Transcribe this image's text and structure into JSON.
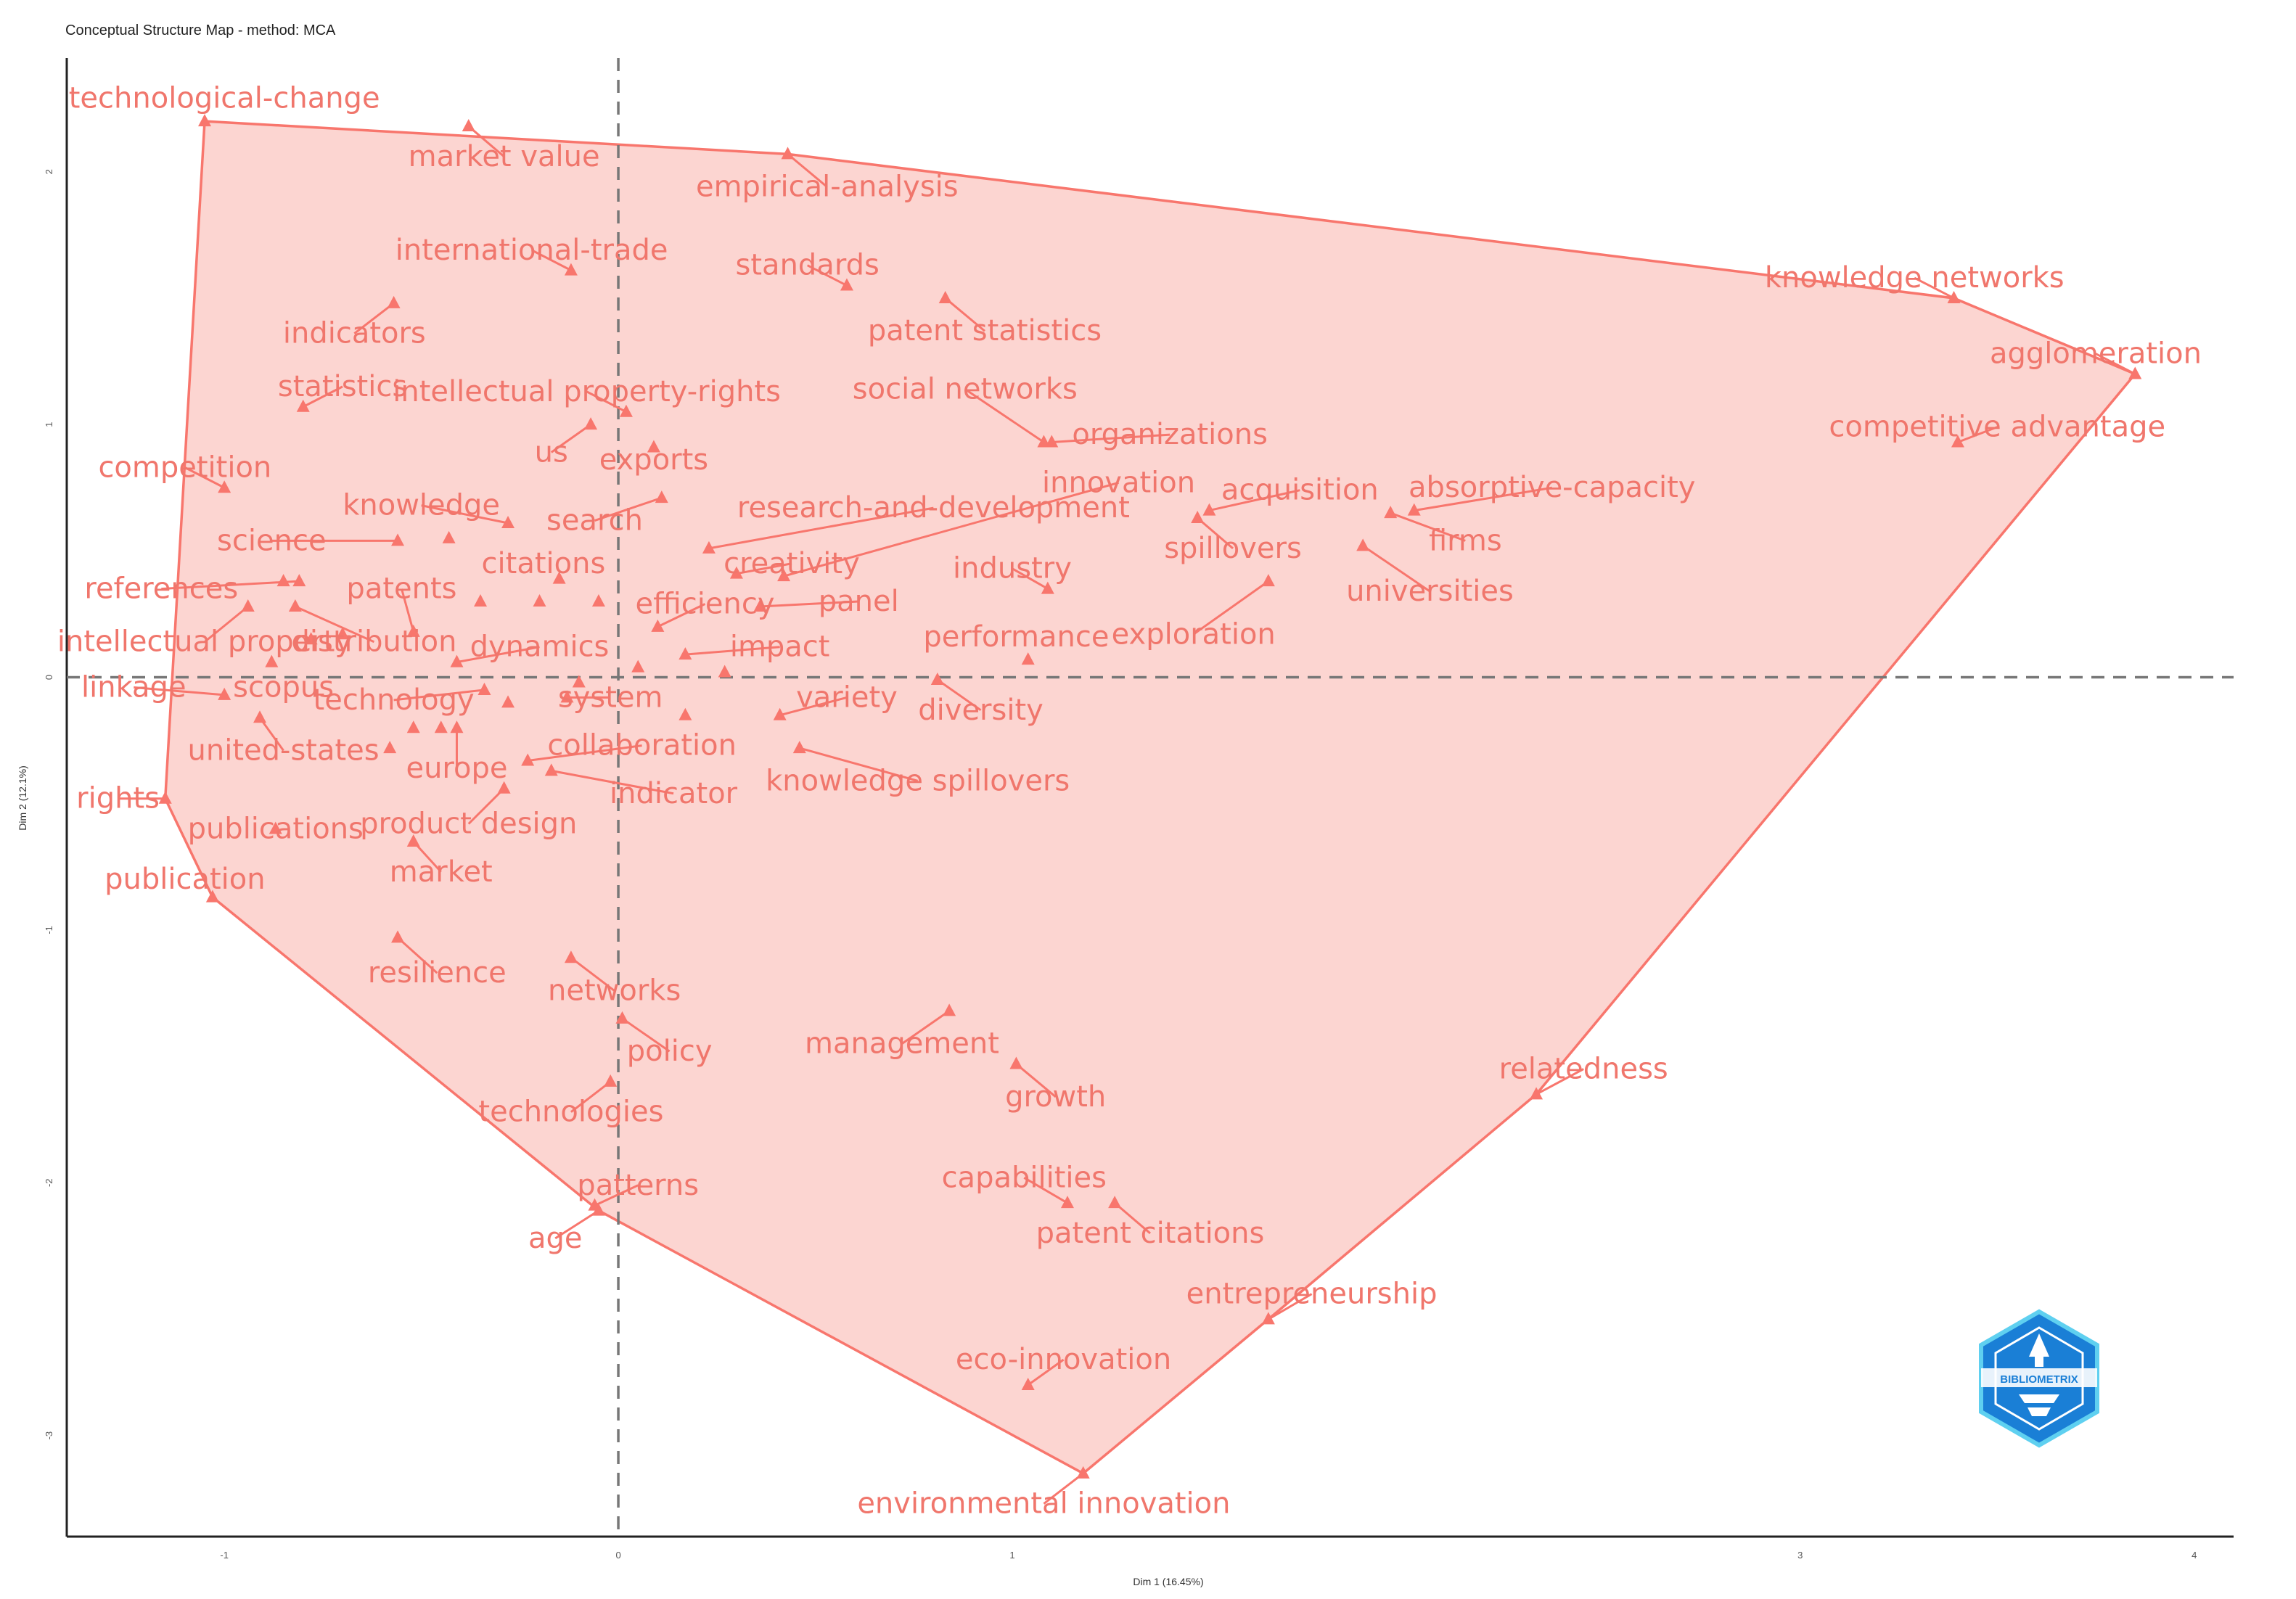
{
  "chart_data": {
    "type": "scatter",
    "title": "Conceptual Structure Map - method: MCA",
    "xlabel": "Dim 1 (16.45%)",
    "ylabel": "Dim 2 (12.1%)",
    "xlim": [
      -1.4,
      4.1
    ],
    "ylim": [
      -3.4,
      2.45
    ],
    "xticks": [
      -1,
      0,
      1,
      3,
      4
    ],
    "yticks": [
      2,
      1,
      0,
      -1,
      -2,
      -3
    ],
    "reference_lines": {
      "x": 0,
      "y": 0
    },
    "colors": {
      "cluster": "#f8766d",
      "fill": "#fcd3cf",
      "logo": "#1a7fd6"
    },
    "hull": [
      "technological-change",
      "empirical-analysis",
      "knowledge networks",
      "agglomeration",
      "relatedness",
      "entrepreneurship",
      "environmental innovation",
      "age",
      "publication",
      "rights"
    ],
    "points": [
      {
        "label": "technological-change",
        "x": -1.05,
        "y": 2.2,
        "lx": -1.0,
        "ly": 2.29
      },
      {
        "label": "market value",
        "x": -0.38,
        "y": 2.18,
        "lx": -0.29,
        "ly": 2.06
      },
      {
        "label": "empirical-analysis",
        "x": 0.43,
        "y": 2.07,
        "lx": 0.53,
        "ly": 1.94
      },
      {
        "label": "international-trade",
        "x": -0.12,
        "y": 1.61,
        "lx": -0.22,
        "ly": 1.69
      },
      {
        "label": "standards",
        "x": 0.58,
        "y": 1.55,
        "lx": 0.48,
        "ly": 1.63
      },
      {
        "label": "patent statistics",
        "x": 0.83,
        "y": 1.5,
        "lx": 0.93,
        "ly": 1.37
      },
      {
        "label": "indicators",
        "x": -0.57,
        "y": 1.48,
        "lx": -0.67,
        "ly": 1.36
      },
      {
        "label": "knowledge networks",
        "x": 3.39,
        "y": 1.5,
        "lx": 3.29,
        "ly": 1.58
      },
      {
        "label": "agglomeration",
        "x": 3.85,
        "y": 1.2,
        "lx": 3.75,
        "ly": 1.28
      },
      {
        "label": "statistics",
        "x": -0.8,
        "y": 1.07,
        "lx": -0.7,
        "ly": 1.15
      },
      {
        "label": "intellectual property-rights",
        "x": 0.02,
        "y": 1.05,
        "lx": -0.08,
        "ly": 1.13
      },
      {
        "label": "social networks",
        "x": 1.08,
        "y": 0.93,
        "lx": 0.88,
        "ly": 1.14
      },
      {
        "label": "organizations",
        "x": 1.1,
        "y": 0.93,
        "lx": 1.4,
        "ly": 0.96
      },
      {
        "label": "competitive advantage",
        "x": 3.4,
        "y": 0.93,
        "lx": 3.5,
        "ly": 0.99
      },
      {
        "label": "us",
        "x": -0.07,
        "y": 1.0,
        "lx": -0.17,
        "ly": 0.89
      },
      {
        "label": "exports",
        "x": 0.09,
        "y": 0.91,
        "lx": 0.09,
        "ly": 0.86
      },
      {
        "label": "competition",
        "x": -1.0,
        "y": 0.75,
        "lx": -1.1,
        "ly": 0.83
      },
      {
        "label": "innovation",
        "x": 0.42,
        "y": 0.4,
        "lx": 1.27,
        "ly": 0.77
      },
      {
        "label": "research-and-development",
        "x": 0.23,
        "y": 0.51,
        "lx": 0.8,
        "ly": 0.67
      },
      {
        "label": "acquisition",
        "x": 1.5,
        "y": 0.66,
        "lx": 1.73,
        "ly": 0.74
      },
      {
        "label": "absorptive-capacity",
        "x": 2.02,
        "y": 0.66,
        "lx": 2.37,
        "ly": 0.75
      },
      {
        "label": "firms",
        "x": 1.96,
        "y": 0.65,
        "lx": 2.15,
        "ly": 0.54
      },
      {
        "label": "knowledge",
        "x": -0.28,
        "y": 0.61,
        "lx": -0.5,
        "ly": 0.68
      },
      {
        "label": "search",
        "x": 0.11,
        "y": 0.71,
        "lx": -0.06,
        "ly": 0.62
      },
      {
        "label": "science",
        "x": -0.56,
        "y": 0.54,
        "lx": -0.88,
        "ly": 0.54
      },
      {
        "label": "spillovers",
        "x": 1.47,
        "y": 0.63,
        "lx": 1.56,
        "ly": 0.51
      },
      {
        "label": "creativity",
        "x": 0.3,
        "y": 0.41,
        "lx": 0.44,
        "ly": 0.45
      },
      {
        "label": "citations",
        "x": -0.15,
        "y": 0.39,
        "lx": -0.19,
        "ly": 0.45
      },
      {
        "label": "industry",
        "x": 1.09,
        "y": 0.35,
        "lx": 1.0,
        "ly": 0.43
      },
      {
        "label": "universities",
        "x": 1.89,
        "y": 0.52,
        "lx": 2.06,
        "ly": 0.34
      },
      {
        "label": "references",
        "x": -0.81,
        "y": 0.38,
        "lx": -1.16,
        "ly": 0.35
      },
      {
        "label": "patents",
        "x": -0.52,
        "y": 0.18,
        "lx": -0.55,
        "ly": 0.35
      },
      {
        "label": "panel",
        "x": 0.36,
        "y": 0.28,
        "lx": 0.61,
        "ly": 0.3
      },
      {
        "label": "efficiency",
        "x": 0.1,
        "y": 0.2,
        "lx": 0.22,
        "ly": 0.29
      },
      {
        "label": "exploration",
        "x": 1.65,
        "y": 0.38,
        "lx": 1.46,
        "ly": 0.17
      },
      {
        "label": "performance",
        "x": 1.04,
        "y": 0.07,
        "lx": 1.01,
        "ly": 0.16
      },
      {
        "label": "intellectual property",
        "x": -0.94,
        "y": 0.28,
        "lx": -1.05,
        "ly": 0.14
      },
      {
        "label": "distribution",
        "x": -0.82,
        "y": 0.28,
        "lx": -0.62,
        "ly": 0.14
      },
      {
        "label": "dynamics",
        "x": -0.41,
        "y": 0.06,
        "lx": -0.2,
        "ly": 0.12
      },
      {
        "label": "impact",
        "x": 0.17,
        "y": 0.09,
        "lx": 0.41,
        "ly": 0.12
      },
      {
        "label": "linkage",
        "x": -1.0,
        "y": -0.07,
        "lx": -1.23,
        "ly": -0.04
      },
      {
        "label": "scopus",
        "x": -0.88,
        "y": 0.06,
        "lx": -0.85,
        "ly": -0.04
      },
      {
        "label": "technology",
        "x": -0.34,
        "y": -0.05,
        "lx": -0.57,
        "ly": -0.09
      },
      {
        "label": "system",
        "x": -0.13,
        "y": -0.08,
        "lx": -0.02,
        "ly": -0.08
      },
      {
        "label": "variety",
        "x": 0.41,
        "y": -0.15,
        "lx": 0.58,
        "ly": -0.08
      },
      {
        "label": "diversity",
        "x": 0.81,
        "y": -0.01,
        "lx": 0.92,
        "ly": -0.13
      },
      {
        "label": "united-states",
        "x": -0.91,
        "y": -0.16,
        "lx": -0.85,
        "ly": -0.29
      },
      {
        "label": "collaboration",
        "x": -0.23,
        "y": -0.33,
        "lx": 0.06,
        "ly": -0.27
      },
      {
        "label": "europe",
        "x": -0.41,
        "y": -0.2,
        "lx": -0.41,
        "ly": -0.36
      },
      {
        "label": "knowledge spillovers",
        "x": 0.46,
        "y": -0.28,
        "lx": 0.76,
        "ly": -0.41
      },
      {
        "label": "rights",
        "x": -1.15,
        "y": -0.48,
        "lx": -1.27,
        "ly": -0.48
      },
      {
        "label": "indicator",
        "x": -0.17,
        "y": -0.37,
        "lx": 0.14,
        "ly": -0.46
      },
      {
        "label": "publications",
        "x": -0.87,
        "y": -0.6,
        "lx": -0.87,
        "ly": -0.6
      },
      {
        "label": "product design",
        "x": -0.29,
        "y": -0.44,
        "lx": -0.38,
        "ly": -0.58
      },
      {
        "label": "market",
        "x": -0.52,
        "y": -0.65,
        "lx": -0.45,
        "ly": -0.77
      },
      {
        "label": "publication",
        "x": -1.03,
        "y": -0.87,
        "lx": -1.1,
        "ly": -0.8
      },
      {
        "label": "resilience",
        "x": -0.56,
        "y": -1.03,
        "lx": -0.46,
        "ly": -1.17
      },
      {
        "label": "networks",
        "x": -0.12,
        "y": -1.11,
        "lx": -0.01,
        "ly": -1.24
      },
      {
        "label": "management",
        "x": 0.84,
        "y": -1.32,
        "lx": 0.72,
        "ly": -1.45
      },
      {
        "label": "policy",
        "x": 0.01,
        "y": -1.35,
        "lx": 0.13,
        "ly": -1.48
      },
      {
        "label": "growth",
        "x": 1.01,
        "y": -1.53,
        "lx": 1.11,
        "ly": -1.66
      },
      {
        "label": "relatedness",
        "x": 2.33,
        "y": -1.65,
        "lx": 2.45,
        "ly": -1.55
      },
      {
        "label": "technologies",
        "x": -0.02,
        "y": -1.6,
        "lx": -0.12,
        "ly": -1.72
      },
      {
        "label": "patterns",
        "x": -0.06,
        "y": -2.09,
        "lx": 0.05,
        "ly": -2.01
      },
      {
        "label": "capabilities",
        "x": 1.14,
        "y": -2.08,
        "lx": 1.03,
        "ly": -1.98
      },
      {
        "label": "patent citations",
        "x": 1.26,
        "y": -2.08,
        "lx": 1.35,
        "ly": -2.2
      },
      {
        "label": "age",
        "x": -0.05,
        "y": -2.11,
        "lx": -0.16,
        "ly": -2.22
      },
      {
        "label": "entrepreneurship",
        "x": 1.65,
        "y": -2.54,
        "lx": 1.76,
        "ly": -2.44
      },
      {
        "label": "eco-innovation",
        "x": 1.04,
        "y": -2.8,
        "lx": 1.13,
        "ly": -2.7
      },
      {
        "label": "environmental innovation",
        "x": 1.18,
        "y": -3.15,
        "lx": 1.08,
        "ly": -3.27
      }
    ],
    "extra_markers": [
      {
        "x": -0.7,
        "y": 0.17
      },
      {
        "x": -0.78,
        "y": 0.15
      },
      {
        "x": -0.58,
        "y": -0.28
      },
      {
        "x": -0.35,
        "y": 0.3
      },
      {
        "x": -0.2,
        "y": 0.3
      },
      {
        "x": -0.05,
        "y": 0.3
      },
      {
        "x": -0.1,
        "y": -0.02
      },
      {
        "x": 0.05,
        "y": 0.04
      },
      {
        "x": 0.27,
        "y": 0.02
      },
      {
        "x": 0.17,
        "y": -0.15
      },
      {
        "x": -0.28,
        "y": -0.1
      },
      {
        "x": -0.45,
        "y": -0.2
      },
      {
        "x": -0.52,
        "y": -0.2
      },
      {
        "x": -0.85,
        "y": 0.38
      },
      {
        "x": -0.43,
        "y": 0.55
      }
    ]
  },
  "logo": {
    "text": "BIBLIOMETRIX"
  }
}
